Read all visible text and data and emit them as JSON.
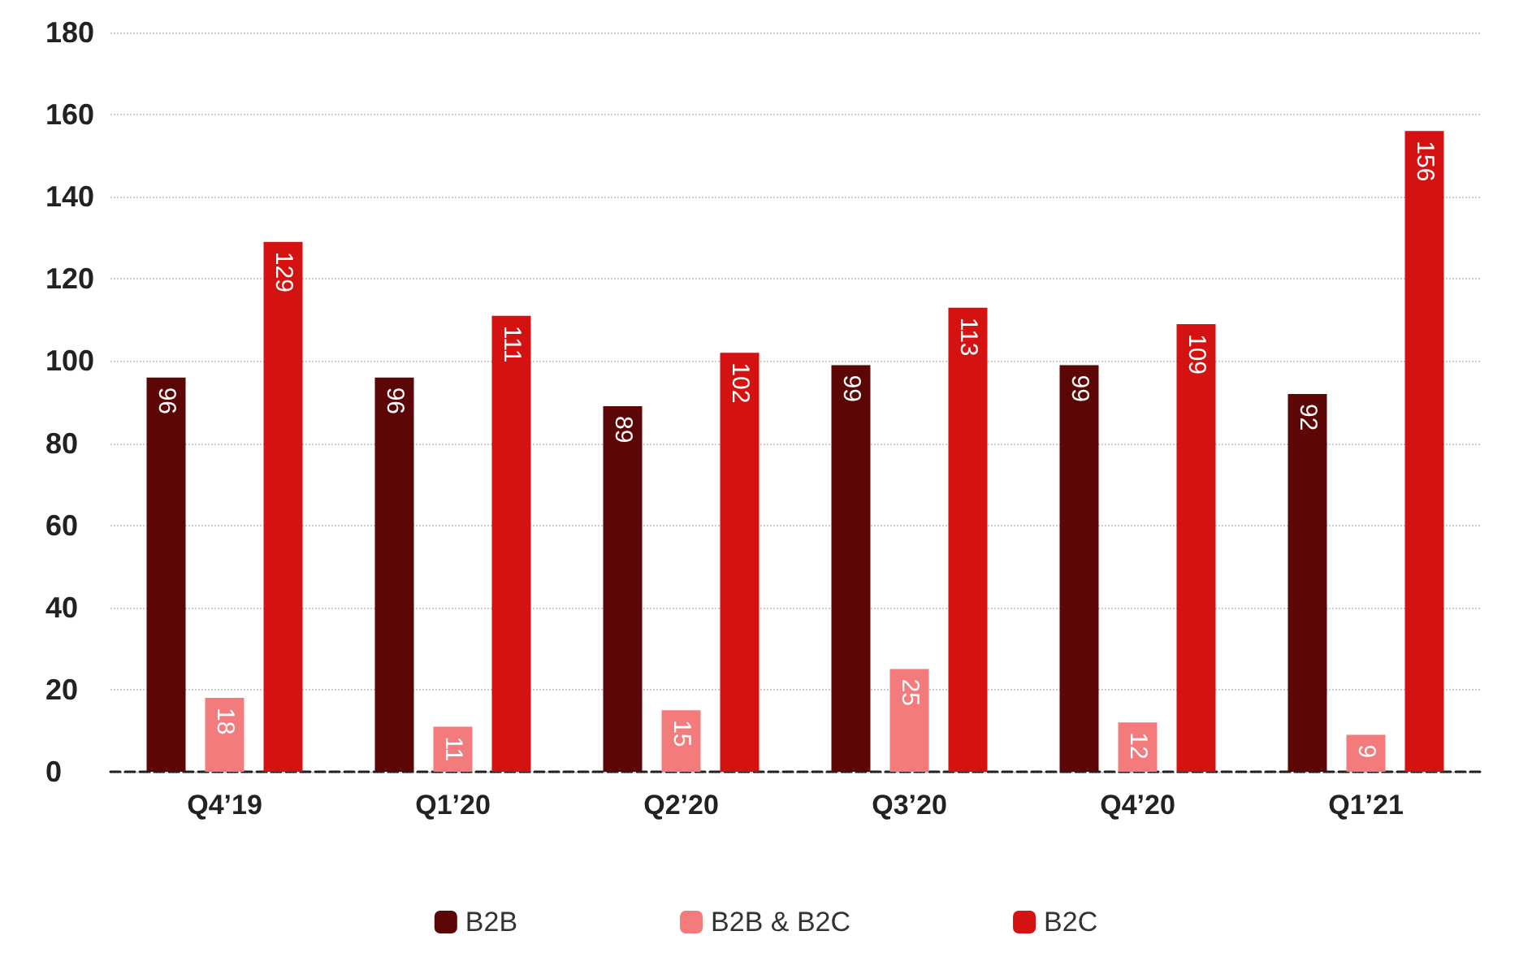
{
  "chart_data": {
    "type": "bar",
    "categories": [
      "Q4’19",
      "Q1’20",
      "Q2’20",
      "Q3’20",
      "Q4’20",
      "Q1’21"
    ],
    "series": [
      {
        "name": "B2B",
        "color": "#5c0606",
        "values": [
          96,
          96,
          89,
          99,
          99,
          92
        ]
      },
      {
        "name": "B2B & B2C",
        "color": "#f47b7b",
        "values": [
          18,
          11,
          15,
          25,
          12,
          9
        ]
      },
      {
        "name": "B2C",
        "color": "#d51212",
        "values": [
          129,
          111,
          102,
          113,
          109,
          156
        ]
      }
    ],
    "ylim": [
      0,
      180
    ],
    "yticks": [
      0,
      20,
      40,
      60,
      80,
      100,
      120,
      140,
      160,
      180
    ],
    "grid": "y",
    "legend": "bottom",
    "data_labels": true
  }
}
